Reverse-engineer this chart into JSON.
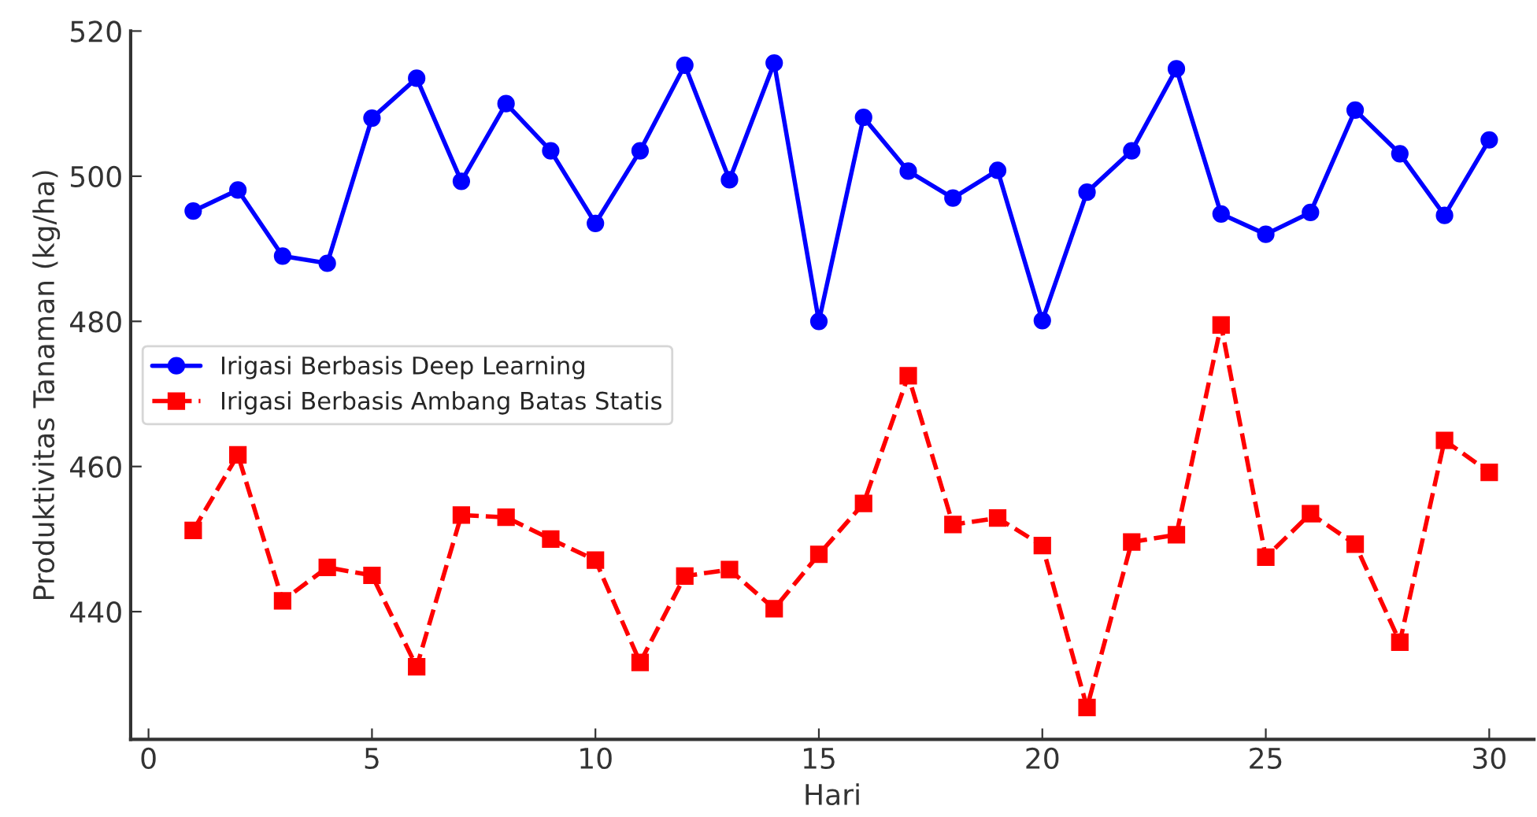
{
  "chart_data": {
    "type": "line",
    "xlabel": "Hari",
    "ylabel": "Produktivitas Tanaman (kg/ha)",
    "x": [
      1,
      2,
      3,
      4,
      5,
      6,
      7,
      8,
      9,
      10,
      11,
      12,
      13,
      14,
      15,
      16,
      17,
      18,
      19,
      20,
      21,
      22,
      23,
      24,
      25,
      26,
      27,
      28,
      29,
      30
    ],
    "series": [
      {
        "name": "Irigasi Berbasis Deep Learning",
        "color": "#0000ff",
        "marker": "circle",
        "line_style": "solid",
        "values": [
          495.2,
          498.1,
          489,
          488,
          508,
          513.5,
          499.3,
          510,
          503.5,
          493.5,
          503.5,
          515.3,
          499.5,
          515.6,
          480,
          508.1,
          500.7,
          497,
          500.8,
          480.1,
          497.8,
          503.5,
          514.8,
          494.8,
          492,
          495,
          509.1,
          503.1,
          494.6,
          505
        ]
      },
      {
        "name": "Irigasi Berbasis Ambang Batas Statis",
        "color": "#ff0000",
        "marker": "square",
        "line_style": "dashed",
        "values": [
          451.2,
          461.6,
          441.5,
          446.1,
          445,
          432.4,
          453.3,
          453,
          450,
          447.1,
          433,
          444.9,
          445.8,
          440.4,
          447.9,
          454.9,
          472.5,
          452,
          452.9,
          449.1,
          426.8,
          449.6,
          450.6,
          479.5,
          447.5,
          453.5,
          449.3,
          435.8,
          463.6,
          459.2
        ]
      }
    ],
    "xlim": [
      -0.4,
      31
    ],
    "xticks": [
      0,
      5,
      10,
      15,
      20,
      25,
      30
    ],
    "ylim": [
      422.4,
      520
    ],
    "yticks": [
      440,
      460,
      480,
      500,
      520
    ],
    "grid": false,
    "legend": "center left"
  }
}
